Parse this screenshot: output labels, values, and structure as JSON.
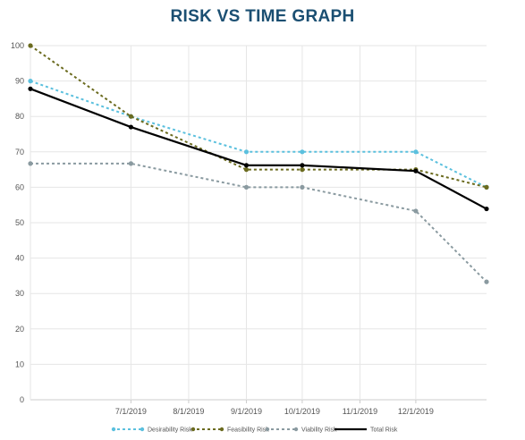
{
  "colors": {
    "title": "#1b4f72",
    "grid": "#e6e6e6",
    "axis": "#cccccc"
  },
  "chart_data": {
    "type": "line",
    "title": "RISK VS TIME GRAPH",
    "xlabel": "",
    "ylabel": "",
    "ylim": [
      0,
      100
    ],
    "xlim": [
      "2019-05-08",
      "2020-01-08"
    ],
    "y_ticks": [
      0,
      10,
      20,
      30,
      40,
      50,
      60,
      70,
      80,
      90,
      100
    ],
    "x_ticks": [
      "2019-07-01",
      "2019-08-01",
      "2019-09-01",
      "2019-10-01",
      "2019-11-01",
      "2019-12-01"
    ],
    "x_tick_labels": [
      "7/1/2019",
      "8/1/2019",
      "9/1/2019",
      "10/1/2019",
      "11/1/2019",
      "12/1/2019"
    ],
    "x": [
      "2019-05-08",
      "2019-07-01",
      "2019-09-01",
      "2019-10-01",
      "2019-12-01",
      "2020-01-08"
    ],
    "grid": true,
    "legend_position": "bottom",
    "series": [
      {
        "name": "Desirability Risk",
        "color": "#5bc0de",
        "style": "dashed",
        "values": [
          90,
          80,
          70,
          70,
          70,
          60
        ]
      },
      {
        "name": "Feasibility Risk",
        "color": "#6b6b1f",
        "style": "dashed",
        "values": [
          100,
          80,
          65,
          65,
          65,
          60
        ]
      },
      {
        "name": "Viability Risk",
        "color": "#8a9aa0",
        "style": "dashed",
        "values": [
          66.7,
          66.7,
          60,
          60,
          53.3,
          33.3
        ]
      },
      {
        "name": "Total Risk",
        "color": "#000000",
        "style": "solid",
        "values": [
          87.8,
          77,
          66.2,
          66.2,
          64.6,
          53.9
        ]
      }
    ]
  }
}
